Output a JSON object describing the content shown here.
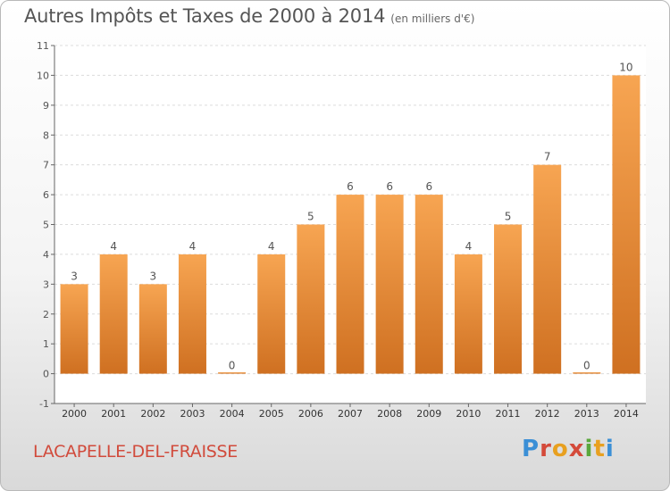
{
  "header": {
    "title": "Autres Impôts et Taxes de 2000 à 2014",
    "subtitle": "(en milliers d'€)"
  },
  "footer": {
    "commune": "LACAPELLE-DEL-FRAISSE",
    "logo": "Proxiti"
  },
  "colors": {
    "bar_light": "#f7a552",
    "bar_dark": "#cf7021",
    "grid": "#dcdcdc",
    "axis": "#666666",
    "label": "#555555"
  },
  "chart_data": {
    "type": "bar",
    "title": "Autres Impôts et Taxes de 2000 à 2014",
    "subtitle": "(en milliers d'€)",
    "categories": [
      "2000",
      "2001",
      "2002",
      "2003",
      "2004",
      "2005",
      "2006",
      "2007",
      "2008",
      "2009",
      "2010",
      "2011",
      "2012",
      "2013",
      "2014"
    ],
    "values": [
      3,
      4,
      3,
      4,
      0,
      4,
      5,
      6,
      6,
      6,
      4,
      5,
      7,
      0,
      10
    ],
    "yticks": [
      "-1",
      "0",
      "1",
      "2",
      "3",
      "4",
      "5",
      "6",
      "7",
      "8",
      "9",
      "10",
      "11"
    ],
    "ylim": [
      -1,
      11
    ],
    "grid": true
  }
}
